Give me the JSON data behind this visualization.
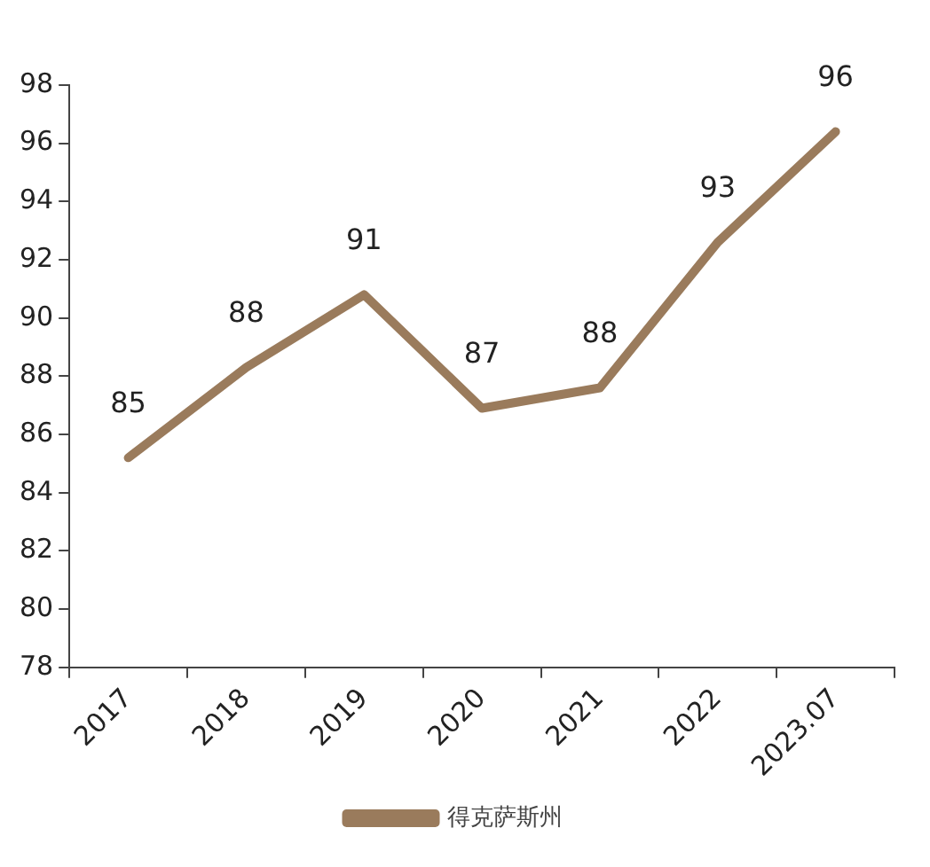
{
  "chart_data": {
    "type": "line",
    "categories": [
      "2017",
      "2018",
      "2019",
      "2020",
      "2021",
      "2022",
      "2023.07"
    ],
    "series": [
      {
        "name": "得克萨斯州",
        "color": "#9a7b5c",
        "values": [
          85.2,
          88.3,
          90.8,
          86.9,
          87.6,
          92.6,
          96.4
        ],
        "value_labels": [
          "85",
          "88",
          "91",
          "87",
          "88",
          "93",
          "96"
        ]
      }
    ],
    "ylim": [
      78,
      98
    ],
    "yticks": [
      78,
      80,
      82,
      84,
      86,
      88,
      90,
      92,
      94,
      96,
      98
    ],
    "grid": false,
    "legend": "bottom",
    "marker": "none",
    "line_style": "solid"
  }
}
